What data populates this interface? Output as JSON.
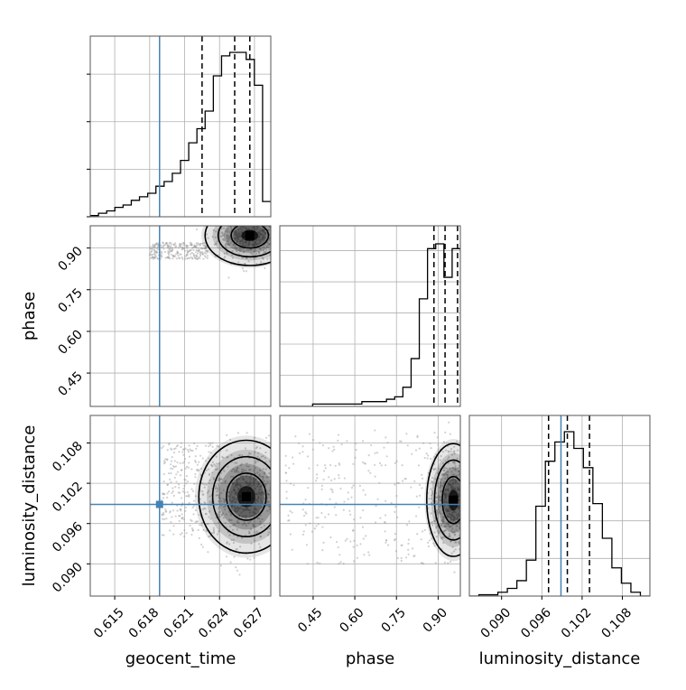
{
  "colors": {
    "truth": "#4682b4",
    "contour": "#000000",
    "grid": "#b0b0b0",
    "points": "#9a9a9a"
  },
  "labels": {
    "geocent_time": "geocent_time",
    "phase": "phase",
    "luminosity_distance": "luminosity_distance"
  },
  "ticks": {
    "geocent_time": [
      "0.615",
      "0.618",
      "0.621",
      "0.624",
      "0.627"
    ],
    "phase": [
      "0.45",
      "0.60",
      "0.75",
      "0.90"
    ],
    "luminosity_distance": [
      "0.090",
      "0.096",
      "0.102",
      "0.108"
    ]
  },
  "chart_data": {
    "type": "corner",
    "parameters": [
      "geocent_time",
      "phase",
      "luminosity_distance"
    ],
    "ranges": {
      "geocent_time": [
        0.6129,
        0.6284
      ],
      "phase": [
        0.33,
        0.98
      ],
      "luminosity_distance": [
        0.0852,
        0.1121
      ]
    },
    "truths": {
      "geocent_time": 0.61885,
      "luminosity_distance": 0.09885
    },
    "quantiles": {
      "geocent_time": [
        0.6225,
        0.6253,
        0.6266
      ],
      "phase": [
        0.885,
        0.925,
        0.97
      ],
      "luminosity_distance": [
        0.097,
        0.0998,
        0.1031
      ]
    },
    "histograms": {
      "geocent_time": {
        "bins": [
          0.6129,
          0.6284
        ],
        "counts": [
          0.1,
          0.3,
          0.5,
          0.8,
          1.0,
          1.4,
          1.7,
          2.0,
          2.6,
          3.0,
          3.7,
          4.8,
          6.3,
          7.5,
          9.0,
          12.0,
          13.7,
          14.0,
          14.0,
          13.4,
          11.2,
          1.3
        ]
      },
      "phase": {
        "bins": [
          0.33,
          0.98
        ],
        "counts": [
          0.0,
          0.0,
          0.0,
          0.0,
          0.1,
          0.1,
          0.1,
          0.1,
          0.1,
          0.1,
          0.2,
          0.2,
          0.2,
          0.3,
          0.4,
          0.8,
          2.0,
          4.5,
          6.6,
          6.8,
          5.4,
          6.6
        ]
      },
      "luminosity_distance": {
        "bins": [
          0.0852,
          0.1121
        ],
        "counts": [
          0.0,
          0.1,
          0.1,
          0.3,
          0.6,
          1.2,
          2.8,
          7.0,
          10.5,
          12.0,
          12.8,
          11.5,
          10.0,
          7.2,
          4.5,
          2.2,
          1.0,
          0.3,
          0.0
        ]
      }
    },
    "joint": [
      {
        "x": "geocent_time",
        "y": "phase",
        "mode": {
          "x": 0.6266,
          "y": 0.945
        },
        "spread": {
          "x": 0.0016,
          "y": 0.045
        },
        "tail": {
          "x": [
            0.618,
            0.623
          ],
          "y": [
            0.86,
            0.92
          ]
        }
      },
      {
        "x": "geocent_time",
        "y": "luminosity_distance",
        "mode": {
          "x": 0.6263,
          "y": 0.1
        },
        "spread": {
          "x": 0.0017,
          "y": 0.0035
        },
        "tail": {
          "x": [
            0.619,
            0.624
          ],
          "y": [
            0.094,
            0.108
          ]
        }
      },
      {
        "x": "phase",
        "y": "luminosity_distance",
        "mode": {
          "x": 0.955,
          "y": 0.0995
        },
        "spread": {
          "x": 0.04,
          "y": 0.0035
        },
        "tail": {
          "x": [
            0.35,
            0.95
          ],
          "y": [
            0.09,
            0.11
          ]
        }
      }
    ]
  }
}
